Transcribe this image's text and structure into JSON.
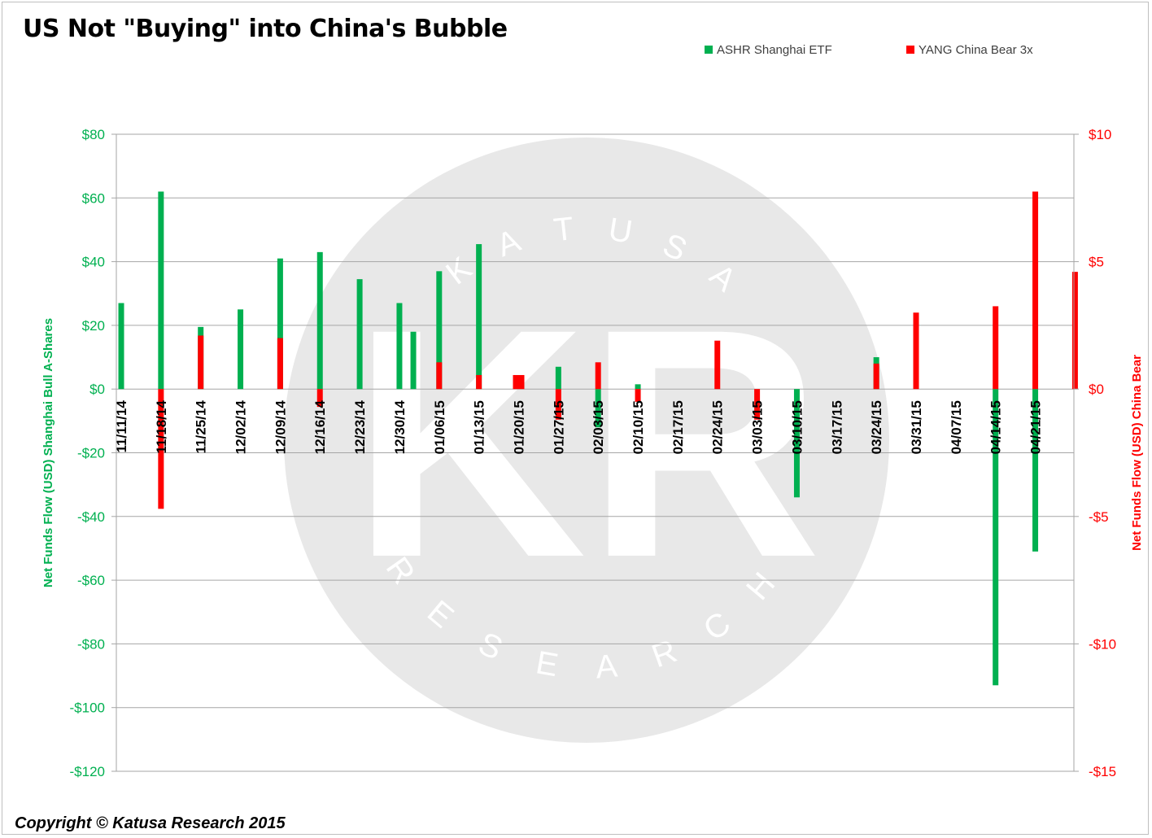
{
  "colors": {
    "ashr": "#00b050",
    "yang": "#ff0000",
    "left_axis_text": "#00b050",
    "right_axis_text": "#ff0000",
    "grid": "#a6a6a6",
    "watermark": "#e8e8e8"
  },
  "title": "US Not \"Buying\" into China's Bubble",
  "copyright": "Copyright © Katusa Research 2015",
  "watermark": {
    "monogram": "KR",
    "top_word": "KATUSA",
    "bottom_word": "RESEARCH"
  },
  "chart_data": {
    "type": "bar",
    "title": "US Not \"Buying\" into China's Bubble",
    "grid": true,
    "legend_position": "top-right",
    "categories": [
      "11/11/14",
      "11/18/14",
      "11/25/14",
      "12/02/14",
      "12/09/14",
      "12/16/14",
      "12/23/14",
      "12/30/14",
      "01/06/15",
      "01/13/15",
      "01/20/15",
      "01/27/15",
      "02/03/15",
      "02/10/15",
      "02/17/15",
      "02/24/15",
      "03/03/15",
      "03/10/15",
      "03/17/15",
      "03/24/15",
      "03/31/15",
      "04/07/15",
      "04/14/15",
      "04/21/15"
    ],
    "tick_positions": [
      0,
      1,
      2,
      3,
      4,
      5,
      6,
      7,
      8,
      9,
      10,
      11,
      12,
      13,
      14,
      15,
      16,
      17,
      18,
      19,
      20,
      21,
      22,
      23
    ],
    "y_left": {
      "label": "Net Funds Flow (USD) Shanghai Bull A-Shares",
      "range": [
        -120,
        80
      ],
      "ticks": [
        "$80",
        "$60",
        "$40",
        "$20",
        "$0",
        "-$20",
        "-$40",
        "-$60",
        "-$80",
        "-$100",
        "-$120"
      ],
      "tick_values": [
        80,
        60,
        40,
        20,
        0,
        -20,
        -40,
        -60,
        -80,
        -100,
        -120
      ]
    },
    "y_right": {
      "label": "Net Funds Flow (USD) China Bear",
      "range": [
        -15,
        10
      ],
      "ticks": [
        "$10",
        "$5",
        "$0",
        "-$5",
        "-$10",
        "-$15"
      ],
      "tick_values": [
        10,
        5,
        0,
        -5,
        -10,
        -15
      ]
    },
    "series": [
      {
        "name": "ASHR Shanghai ETF",
        "axis": "left",
        "color": "#00b050",
        "points": [
          {
            "x": 0,
            "y": 27
          },
          {
            "x": 1,
            "y": 62
          },
          {
            "x": 2,
            "y": 19.5
          },
          {
            "x": 3,
            "y": 25
          },
          {
            "x": 4,
            "y": 41
          },
          {
            "x": 5,
            "y": 43
          },
          {
            "x": 6,
            "y": 34.5
          },
          {
            "x": 7,
            "y": 27
          },
          {
            "x": 7.35,
            "y": 18
          },
          {
            "x": 8,
            "y": 37
          },
          {
            "x": 9,
            "y": 45.5
          },
          {
            "x": 11,
            "y": 7
          },
          {
            "x": 12,
            "y": -12
          },
          {
            "x": 13,
            "y": 1.5
          },
          {
            "x": 17,
            "y": -34
          },
          {
            "x": 19,
            "y": 10
          },
          {
            "x": 22,
            "y": -93
          },
          {
            "x": 23,
            "y": -51
          }
        ]
      },
      {
        "name": "YANG China Bear 3x",
        "axis": "right",
        "color": "#ff0000",
        "points": [
          {
            "x": 1,
            "y": -4.7
          },
          {
            "x": 2,
            "y": 2.1
          },
          {
            "x": 4,
            "y": 2.0
          },
          {
            "x": 5,
            "y": -0.7
          },
          {
            "x": 8,
            "y": 1.05
          },
          {
            "x": 9,
            "y": 0.55
          },
          {
            "x": 10,
            "y": 0.55
          },
          {
            "x": 11,
            "y": -1.2
          },
          {
            "x": 12,
            "y": 1.05
          },
          {
            "x": 13,
            "y": -0.5
          },
          {
            "x": 15,
            "y": 1.9
          },
          {
            "x": 16,
            "y": -1.2
          },
          {
            "x": 19,
            "y": 1.0
          },
          {
            "x": 20,
            "y": 3.0
          },
          {
            "x": 22,
            "y": 3.25
          },
          {
            "x": 23,
            "y": 7.75
          },
          {
            "x": 24,
            "y": 4.6
          }
        ]
      }
    ]
  }
}
